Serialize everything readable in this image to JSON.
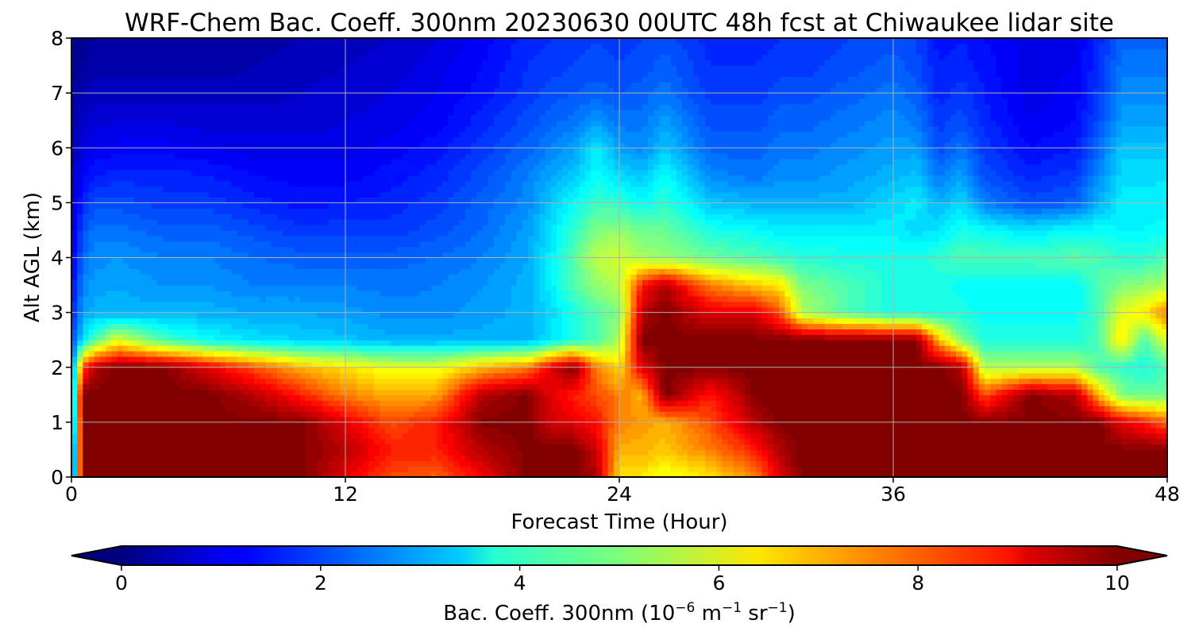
{
  "chart_data": {
    "type": "heatmap",
    "title": "WRF-Chem Bac. Coeff. 300nm  20230630 00UTC 48h fcst at Chiwaukee lidar site",
    "xlabel": "Forecast Time (Hour)",
    "ylabel": "Alt AGL (km)",
    "xlim": [
      0,
      48
    ],
    "ylim": [
      0,
      8
    ],
    "xticks": [
      "0",
      "12",
      "24",
      "36",
      "48"
    ],
    "yticks": [
      "0",
      "1",
      "2",
      "3",
      "4",
      "5",
      "6",
      "7",
      "8"
    ],
    "grid": true,
    "colormap": "jet",
    "colorbar": {
      "orientation": "horizontal",
      "placement": "bottom",
      "range": [
        0,
        10
      ],
      "extend": "both",
      "ticks": [
        "0",
        "2",
        "4",
        "6",
        "8",
        "10"
      ],
      "label_main": "Bac. Coeff. 300nm  (10",
      "label_exp1": "−6",
      "label_mid": " m",
      "label_exp2": "−1",
      "label_mid2": " sr",
      "label_exp3": "−1",
      "label_end": ")"
    },
    "x": [
      0,
      0.5,
      1,
      2,
      4,
      6,
      8,
      10,
      12,
      14,
      16,
      18,
      20,
      21,
      22,
      23,
      24,
      25,
      26,
      28,
      30,
      31,
      32,
      34,
      36,
      37,
      38,
      39,
      40,
      42,
      44,
      45,
      46,
      47,
      48
    ],
    "y": [
      0,
      0.5,
      1,
      1.5,
      2,
      2.5,
      3,
      3.5,
      4,
      4.5,
      5,
      5.5,
      6,
      6.5,
      7,
      7.5,
      8
    ],
    "z": [
      [
        1.0,
        10,
        10,
        10,
        10,
        10,
        10,
        10,
        9.0,
        8.0,
        7.8,
        8.8,
        10,
        10,
        10,
        9.6,
        6.5,
        6.5,
        6.0,
        6.5,
        7.5,
        9.0,
        10,
        10,
        10,
        10,
        10,
        10,
        10,
        10,
        10,
        10,
        10,
        10,
        10
      ],
      [
        1.0,
        10,
        10,
        10,
        10,
        10,
        10,
        10,
        9.5,
        8.5,
        8.5,
        9.5,
        10,
        10,
        10,
        9.2,
        7.0,
        7.0,
        6.8,
        7.5,
        8.5,
        9.5,
        10,
        10,
        10,
        10,
        10,
        10,
        10,
        10,
        10,
        10,
        10,
        10,
        10
      ],
      [
        1.5,
        10,
        10,
        10,
        10,
        10,
        10,
        10,
        9.0,
        8.0,
        8.5,
        10,
        10,
        9.2,
        9.0,
        8.6,
        7.5,
        7.2,
        7.0,
        8.0,
        9.5,
        10,
        10,
        10,
        10,
        10,
        10,
        10,
        10,
        10,
        10,
        10,
        9.0,
        8.5,
        7.8
      ],
      [
        2.0,
        10,
        10,
        10,
        10,
        10,
        9.5,
        8.5,
        7.5,
        7.0,
        7.2,
        9.5,
        10,
        9.0,
        8.5,
        8.0,
        7.5,
        7.0,
        10,
        8.5,
        10,
        10,
        10,
        10,
        10,
        10,
        10,
        10,
        8.0,
        10,
        9.5,
        7.0,
        5.0,
        4.8,
        4.8
      ],
      [
        2.0,
        8.0,
        9.5,
        10,
        10,
        9.0,
        8.0,
        7.0,
        6.5,
        6.0,
        6.0,
        7.0,
        7.5,
        9.0,
        10,
        7.5,
        6.5,
        9.0,
        10,
        10,
        10,
        10,
        10,
        10,
        10,
        10,
        10,
        9.5,
        5.5,
        5.5,
        5.5,
        4.5,
        4.2,
        4.0,
        4.5
      ],
      [
        1.8,
        3.5,
        4.5,
        6.0,
        4.5,
        3.8,
        3.5,
        3.3,
        3.2,
        3.0,
        3.0,
        3.0,
        3.0,
        3.5,
        4.0,
        4.5,
        5.5,
        10,
        10,
        10,
        10,
        10,
        10,
        10,
        10,
        10,
        7.0,
        5.0,
        4.0,
        4.0,
        4.0,
        4.5,
        6.5,
        4.5,
        6.0
      ],
      [
        1.5,
        2.8,
        3.0,
        3.0,
        3.0,
        3.0,
        2.9,
        2.9,
        2.8,
        2.6,
        2.6,
        2.8,
        3.0,
        3.4,
        4.0,
        4.5,
        5.0,
        9.5,
        10,
        9.0,
        9.0,
        8.0,
        5.5,
        4.5,
        4.0,
        4.0,
        4.0,
        4.0,
        3.8,
        3.8,
        3.8,
        4.5,
        6.0,
        6.5,
        7.5
      ],
      [
        1.2,
        2.5,
        2.8,
        2.9,
        2.7,
        2.7,
        2.5,
        2.5,
        2.5,
        2.4,
        2.5,
        2.7,
        3.0,
        3.6,
        4.5,
        5.2,
        5.6,
        8.5,
        9.5,
        7.5,
        6.8,
        6.5,
        5.0,
        4.5,
        4.0,
        4.0,
        4.0,
        3.8,
        3.8,
        3.8,
        3.8,
        4.5,
        5.0,
        5.2,
        5.5
      ],
      [
        1.0,
        2.3,
        2.6,
        2.7,
        2.5,
        2.5,
        2.3,
        2.2,
        2.2,
        2.2,
        2.3,
        2.5,
        2.9,
        3.6,
        4.6,
        5.6,
        5.8,
        5.4,
        5.2,
        4.8,
        4.5,
        4.3,
        4.1,
        4.0,
        4.0,
        4.0,
        4.2,
        4.5,
        4.5,
        4.5,
        4.6,
        4.5,
        4.2,
        4.2,
        4.5
      ],
      [
        0.8,
        2.0,
        2.4,
        2.4,
        2.2,
        2.2,
        2.0,
        1.8,
        1.8,
        1.8,
        2.0,
        2.3,
        2.8,
        3.5,
        4.2,
        5.0,
        5.2,
        4.8,
        4.8,
        4.0,
        3.8,
        3.6,
        3.6,
        3.6,
        3.6,
        3.4,
        3.5,
        4.0,
        3.8,
        3.5,
        3.8,
        3.8,
        3.7,
        3.7,
        3.8
      ],
      [
        0.7,
        1.6,
        2.0,
        2.0,
        1.8,
        1.8,
        1.6,
        1.4,
        1.5,
        1.6,
        1.8,
        2.2,
        2.6,
        3.2,
        3.8,
        4.3,
        4.2,
        3.8,
        4.2,
        3.2,
        3.0,
        3.0,
        3.0,
        3.0,
        3.4,
        3.6,
        3.0,
        3.4,
        2.5,
        2.0,
        2.2,
        3.0,
        3.6,
        3.6,
        3.6
      ],
      [
        0.6,
        1.2,
        1.5,
        1.6,
        1.6,
        1.5,
        1.3,
        1.2,
        1.2,
        1.4,
        1.6,
        2.0,
        2.5,
        2.9,
        3.2,
        3.8,
        3.4,
        3.2,
        3.8,
        2.6,
        2.4,
        2.6,
        2.6,
        2.8,
        3.0,
        3.2,
        2.4,
        2.8,
        2.0,
        1.6,
        1.8,
        2.6,
        3.4,
        3.4,
        3.5
      ],
      [
        0.5,
        0.9,
        1.1,
        1.2,
        1.2,
        1.1,
        1.0,
        1.0,
        1.0,
        1.2,
        1.4,
        1.8,
        2.2,
        2.5,
        2.8,
        3.6,
        2.8,
        2.6,
        3.2,
        2.2,
        2.2,
        2.4,
        2.4,
        2.6,
        2.8,
        2.8,
        2.0,
        2.4,
        1.8,
        1.3,
        1.5,
        2.3,
        3.2,
        3.2,
        3.2
      ],
      [
        0.4,
        0.7,
        0.8,
        0.9,
        0.9,
        0.8,
        0.8,
        0.8,
        0.9,
        1.0,
        1.2,
        1.6,
        2.0,
        2.2,
        2.4,
        2.7,
        2.4,
        2.4,
        2.8,
        2.0,
        2.0,
        2.2,
        2.2,
        2.4,
        2.6,
        2.4,
        1.8,
        2.0,
        1.6,
        1.1,
        1.3,
        2.0,
        2.8,
        2.8,
        2.8
      ],
      [
        0.3,
        0.5,
        0.6,
        0.6,
        0.6,
        0.6,
        0.6,
        0.7,
        0.8,
        0.9,
        1.1,
        1.4,
        1.8,
        2.0,
        2.1,
        2.2,
        2.1,
        2.2,
        2.4,
        1.8,
        1.8,
        2.0,
        2.0,
        2.2,
        2.4,
        2.2,
        1.6,
        1.8,
        1.5,
        1.0,
        1.2,
        1.8,
        2.6,
        2.6,
        2.6
      ],
      [
        0.2,
        0.3,
        0.4,
        0.4,
        0.4,
        0.4,
        0.5,
        0.6,
        0.7,
        0.8,
        1.0,
        1.3,
        1.7,
        1.8,
        1.9,
        2.0,
        1.9,
        2.0,
        2.2,
        1.7,
        1.7,
        1.8,
        1.8,
        2.0,
        2.2,
        2.0,
        1.5,
        1.6,
        1.4,
        1.0,
        1.1,
        1.7,
        2.4,
        2.4,
        2.4
      ],
      [
        0.2,
        0.2,
        0.3,
        0.3,
        0.3,
        0.3,
        0.4,
        0.5,
        0.6,
        0.7,
        0.9,
        1.2,
        1.6,
        1.7,
        1.8,
        1.9,
        1.8,
        1.9,
        2.0,
        1.6,
        1.6,
        1.7,
        1.7,
        1.9,
        2.0,
        1.9,
        1.4,
        1.5,
        1.3,
        1.0,
        1.1,
        1.6,
        2.2,
        2.2,
        2.2
      ]
    ]
  }
}
